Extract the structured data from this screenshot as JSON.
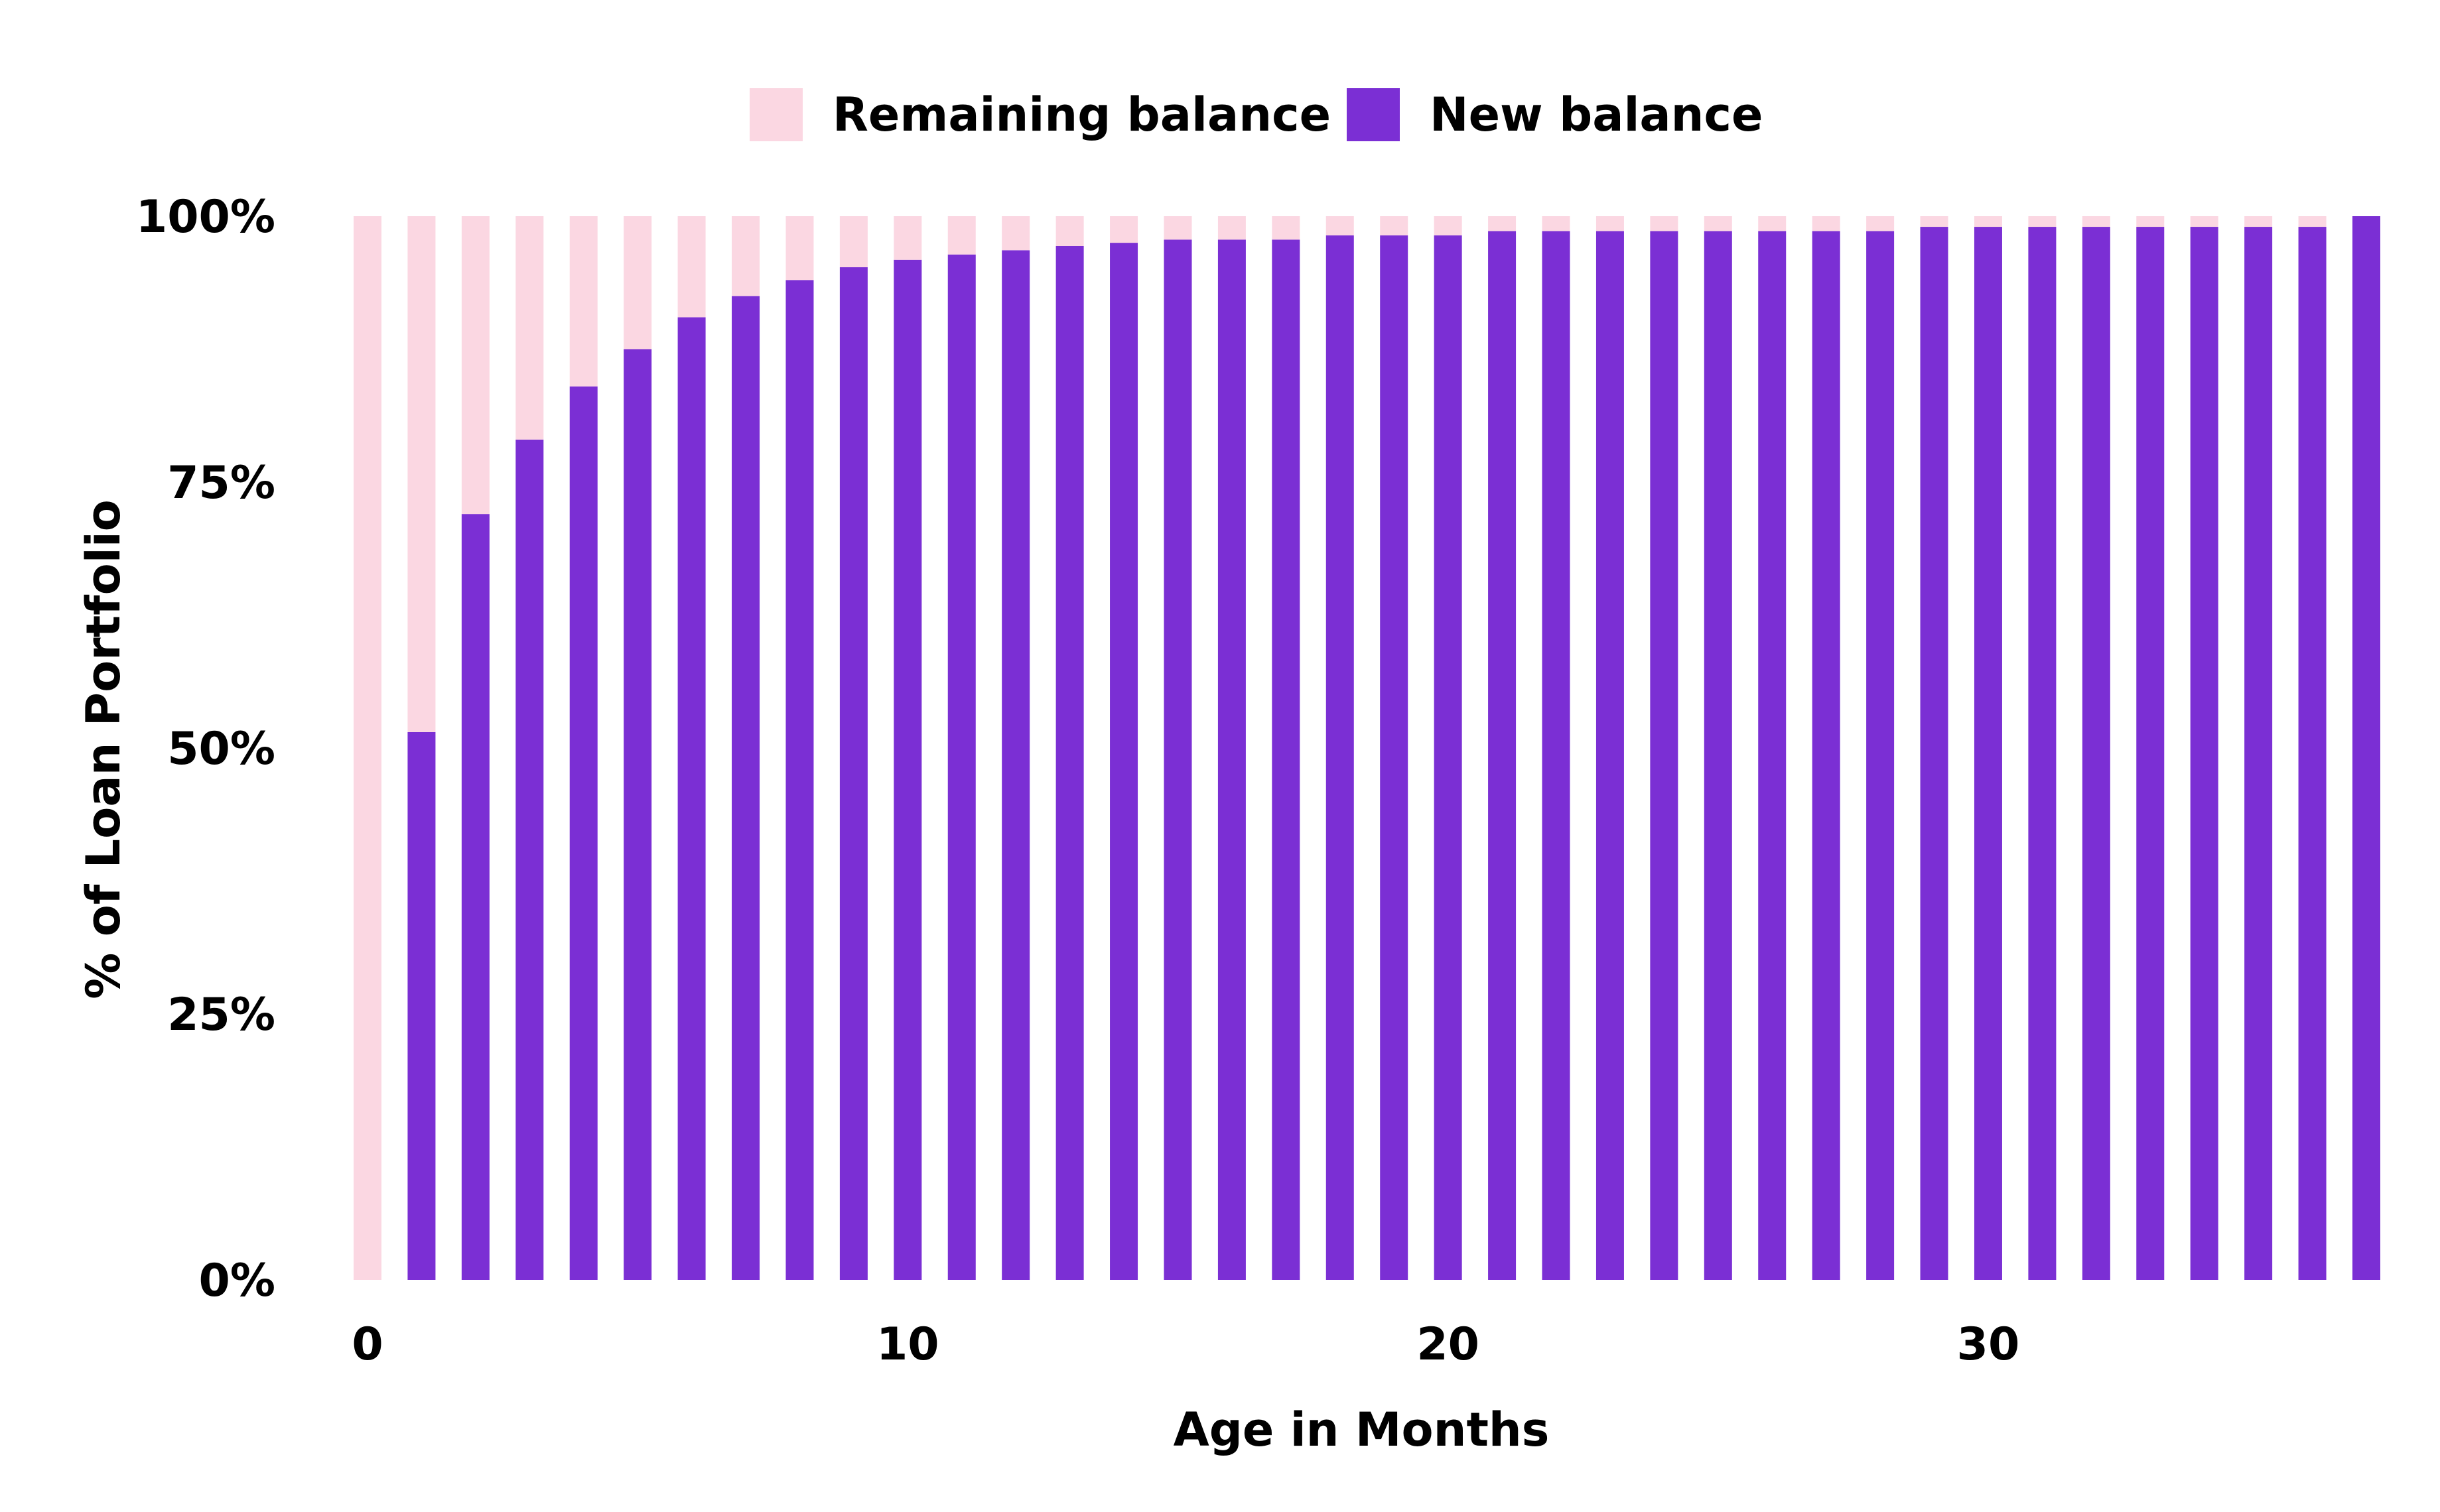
{
  "chart_data": {
    "type": "bar",
    "stacked": true,
    "title": "",
    "xlabel": "Age in Months",
    "ylabel": "% of Loan Portfolio",
    "x": [
      0,
      1,
      2,
      3,
      4,
      5,
      6,
      7,
      8,
      9,
      10,
      11,
      12,
      13,
      14,
      15,
      16,
      17,
      18,
      19,
      20,
      21,
      22,
      23,
      24,
      25,
      26,
      27,
      28,
      29,
      30,
      31,
      32,
      33,
      34,
      35,
      36,
      37
    ],
    "xlim": [
      0,
      37
    ],
    "xticks": [
      {
        "value": 0,
        "label": "0"
      },
      {
        "value": 10,
        "label": "10"
      },
      {
        "value": 20,
        "label": "20"
      },
      {
        "value": 30,
        "label": "30"
      }
    ],
    "ylim": [
      0,
      100
    ],
    "yticks": [
      {
        "value": 0,
        "label": "0%"
      },
      {
        "value": 25,
        "label": "25%"
      },
      {
        "value": 50,
        "label": "50%"
      },
      {
        "value": 75,
        "label": "75%"
      },
      {
        "value": 100,
        "label": "100%"
      }
    ],
    "series": [
      {
        "name": "New balance",
        "color": "#7b2fd4",
        "values": [
          0,
          51.5,
          72,
          79,
          84,
          87.5,
          90.5,
          92.5,
          94,
          95.2,
          95.9,
          96.4,
          96.8,
          97.2,
          97.5,
          97.8,
          97.8,
          97.8,
          98.2,
          98.2,
          98.2,
          98.6,
          98.6,
          98.6,
          98.6,
          98.6,
          98.6,
          98.6,
          98.6,
          99,
          99,
          99,
          99,
          99,
          99,
          99,
          99,
          100
        ]
      },
      {
        "name": "Remaining balance",
        "color": "#fbd7e2",
        "values": [
          100,
          48.5,
          28,
          21,
          16,
          12.5,
          9.5,
          7.5,
          6,
          4.8,
          4.1,
          3.6,
          3.2,
          2.8,
          2.5,
          2.2,
          2.2,
          2.2,
          1.8,
          1.8,
          1.8,
          1.4,
          1.4,
          1.4,
          1.4,
          1.4,
          1.4,
          1.4,
          1.4,
          1,
          1,
          1,
          1,
          1,
          1,
          1,
          1,
          0
        ]
      }
    ],
    "legend": {
      "position": "top-center",
      "entries": [
        "Remaining balance",
        "New balance"
      ]
    },
    "grid": false
  }
}
